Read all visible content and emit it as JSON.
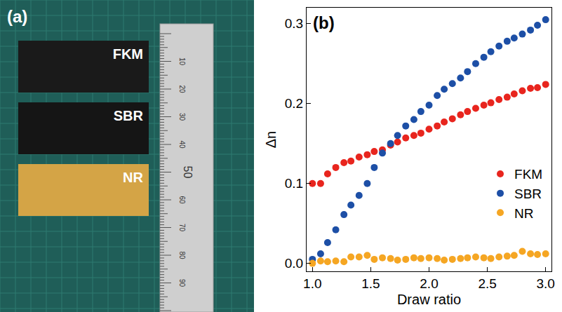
{
  "photo": {
    "panel_label": "(a)",
    "samples": [
      {
        "label": "FKM",
        "color": "#1a1a1a"
      },
      {
        "label": "SBR",
        "color": "#151515"
      },
      {
        "label": "NR",
        "color": "#d4a446"
      }
    ],
    "ruler": {
      "labels": [
        10,
        20,
        30,
        40,
        50,
        60,
        70,
        80,
        90
      ]
    }
  },
  "chart_data": {
    "panel_label": "(b)",
    "type": "scatter",
    "x_label": "Draw ratio",
    "y_label": "Δn",
    "x": [
      1.0,
      1.07,
      1.13,
      1.2,
      1.27,
      1.33,
      1.4,
      1.47,
      1.53,
      1.6,
      1.67,
      1.73,
      1.8,
      1.87,
      1.93,
      2.0,
      2.07,
      2.13,
      2.2,
      2.27,
      2.33,
      2.4,
      2.47,
      2.53,
      2.6,
      2.67,
      2.73,
      2.8,
      2.87,
      2.93,
      3.0
    ],
    "series": [
      {
        "name": "FKM",
        "color": "#e8251e",
        "values": [
          0.1,
          0.1,
          0.112,
          0.12,
          0.126,
          0.128,
          0.133,
          0.136,
          0.14,
          0.142,
          0.148,
          0.152,
          0.157,
          0.16,
          0.163,
          0.168,
          0.172,
          0.177,
          0.181,
          0.186,
          0.19,
          0.194,
          0.198,
          0.201,
          0.205,
          0.208,
          0.212,
          0.216,
          0.219,
          0.22,
          0.224
        ]
      },
      {
        "name": "SBR",
        "color": "#1d4fa6",
        "values": [
          0.005,
          0.012,
          0.026,
          0.042,
          0.061,
          0.073,
          0.085,
          0.1,
          0.12,
          0.138,
          0.15,
          0.16,
          0.172,
          0.18,
          0.19,
          0.198,
          0.21,
          0.218,
          0.225,
          0.232,
          0.24,
          0.25,
          0.258,
          0.265,
          0.272,
          0.278,
          0.282,
          0.287,
          0.292,
          0.298,
          0.305
        ]
      },
      {
        "name": "NR",
        "color": "#f5a623",
        "values": [
          0.0,
          0.003,
          0.002,
          0.003,
          0.002,
          0.008,
          0.008,
          0.01,
          0.005,
          0.007,
          0.006,
          0.004,
          0.005,
          0.007,
          0.006,
          0.007,
          0.006,
          0.004,
          0.005,
          0.006,
          0.007,
          0.008,
          0.007,
          0.006,
          0.008,
          0.009,
          0.01,
          0.015,
          0.012,
          0.011,
          0.012
        ]
      }
    ],
    "xlim": [
      0.95,
      3.05
    ],
    "ylim": [
      -0.01,
      0.32
    ],
    "xticks": [
      {
        "value": 1,
        "label": "1.0"
      },
      {
        "value": 1.5,
        "label": "1.5"
      },
      {
        "value": 2,
        "label": "2.0"
      },
      {
        "value": 2.5,
        "label": "2.5"
      },
      {
        "value": 3,
        "label": "3.0"
      }
    ],
    "yticks": [
      {
        "value": 0,
        "label": "0.0"
      },
      0.1,
      0.2,
      0.3
    ],
    "grid": false,
    "legend": "lower right",
    "marker": "circle"
  }
}
